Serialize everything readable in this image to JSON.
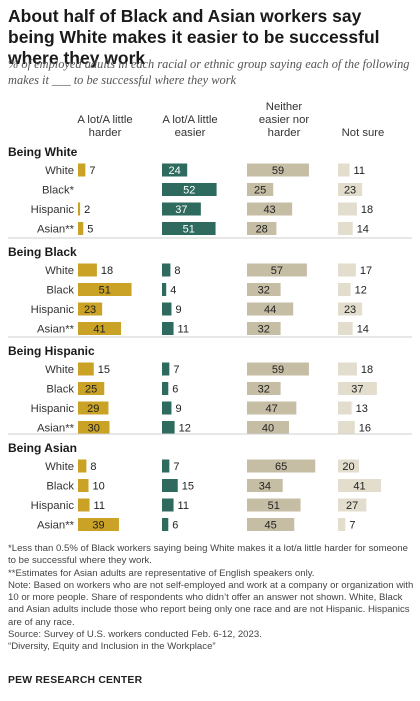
{
  "title": "About half of Black and Asian workers say being White makes it easier to be successful where they work",
  "subtitle": "% of employed adults in each racial or ethnic group saying each of the following makes it ___ to be successful where they work",
  "colors": {
    "harder": "#C9A226",
    "easier": "#2E6B5E",
    "neither": "#C6BDA5",
    "not_sure": "#E3DDCD"
  },
  "chart_data": {
    "type": "bar",
    "columns": [
      "A lot/A little harder",
      "A lot/A little easier",
      "Neither easier nor harder",
      "Not sure"
    ],
    "groups": [
      {
        "name": "Being White",
        "rows": [
          {
            "label": "White",
            "values": [
              7,
              24,
              59,
              11
            ]
          },
          {
            "label": "Black*",
            "values": [
              null,
              52,
              25,
              23
            ]
          },
          {
            "label": "Hispanic",
            "values": [
              2,
              37,
              43,
              18
            ]
          },
          {
            "label": "Asian**",
            "values": [
              5,
              51,
              28,
              14
            ]
          }
        ]
      },
      {
        "name": "Being Black",
        "rows": [
          {
            "label": "White",
            "values": [
              18,
              8,
              57,
              17
            ]
          },
          {
            "label": "Black",
            "values": [
              51,
              4,
              32,
              12
            ]
          },
          {
            "label": "Hispanic",
            "values": [
              23,
              9,
              44,
              23
            ]
          },
          {
            "label": "Asian**",
            "values": [
              41,
              11,
              32,
              14
            ]
          }
        ]
      },
      {
        "name": "Being Hispanic",
        "rows": [
          {
            "label": "White",
            "values": [
              15,
              7,
              59,
              18
            ]
          },
          {
            "label": "Black",
            "values": [
              25,
              6,
              32,
              37
            ]
          },
          {
            "label": "Hispanic",
            "values": [
              29,
              9,
              47,
              13
            ]
          },
          {
            "label": "Asian**",
            "values": [
              30,
              12,
              40,
              16
            ]
          }
        ]
      },
      {
        "name": "Being Asian",
        "rows": [
          {
            "label": "White",
            "values": [
              8,
              7,
              65,
              20
            ]
          },
          {
            "label": "Black",
            "values": [
              10,
              15,
              34,
              41
            ]
          },
          {
            "label": "Hispanic",
            "values": [
              11,
              11,
              51,
              27
            ]
          },
          {
            "label": "Asian**",
            "values": [
              39,
              6,
              45,
              7
            ]
          }
        ]
      }
    ]
  },
  "notes": [
    "*Less than 0.5% of Black workers saying being White makes it a lot/a little harder for someone to be successful where they work.",
    "**Estimates for Asian adults are representative of English speakers only.",
    "Note: Based on workers who are not self-employed and work at a company or organization with 10 or more people. Share of respondents who didn’t offer an answer not shown. White, Black and Asian adults include those who report being only one race and are not Hispanic. Hispanics are of any race.",
    "Source: Survey of U.S. workers conducted Feb. 6-12, 2023.",
    "“Diversity, Equity and Inclusion in the Workplace”"
  ],
  "source_org": "PEW RESEARCH CENTER"
}
